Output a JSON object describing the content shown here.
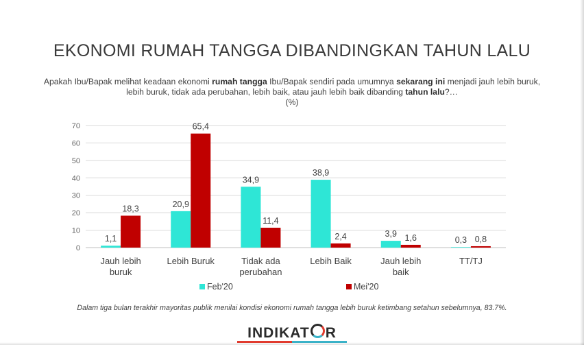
{
  "title": "EKONOMI RUMAH TANGGA DIBANDINGKAN TAHUN LALU",
  "question": {
    "p1": "Apakah Ibu/Bapak melihat keadaan ekonomi ",
    "b1": "rumah tangga",
    "p2": " Ibu/Bapak sendiri pada umumnya ",
    "b2": "sekarang ini",
    "p3": " menjadi jauh lebih buruk, lebih buruk, tidak ada perubahan, lebih baik, atau jauh lebih baik dibanding ",
    "b3": "tahun lalu",
    "p4": "?…",
    "unit": "(%)"
  },
  "footnote": "Dalam tiga bulan terakhir mayoritas publik menilai kondisi ekonomi rumah tangga lebih buruk ketimbang setahun sebelumnya, 83.7%.",
  "logo": {
    "text_left": "INDIKAT",
    "text_right": "R"
  },
  "chart_data": {
    "type": "bar",
    "categories": [
      [
        "Jauh lebih",
        "buruk"
      ],
      [
        "Lebih Buruk"
      ],
      [
        "Tidak ada",
        "perubahan"
      ],
      [
        "Lebih Baik"
      ],
      [
        "Jauh lebih",
        "baik"
      ],
      [
        "TT/TJ"
      ]
    ],
    "series": [
      {
        "name": "Feb'20",
        "color": "#2ee6d6",
        "values": [
          1.1,
          20.9,
          34.9,
          38.9,
          3.9,
          0.3
        ],
        "labels": [
          "1,1",
          "20,9",
          "34,9",
          "38,9",
          "3,9",
          "0,3"
        ]
      },
      {
        "name": "Mei'20",
        "color": "#c00000",
        "values": [
          18.3,
          65.4,
          11.4,
          2.4,
          1.6,
          0.8
        ],
        "labels": [
          "18,3",
          "65,4",
          "11,4",
          "2,4",
          "1,6",
          "0,8"
        ]
      }
    ],
    "yticks": [
      0,
      10,
      20,
      30,
      40,
      50,
      60,
      70
    ],
    "ylim": [
      0,
      70
    ],
    "grid": true,
    "legend": "bottom-center"
  }
}
